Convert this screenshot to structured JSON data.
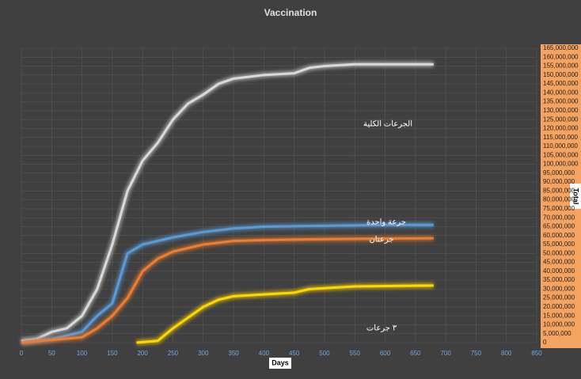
{
  "chart_data": {
    "type": "line",
    "title": "Vaccination",
    "xlabel": "Days",
    "ylabel": "Total",
    "xlim": [
      0,
      850
    ],
    "xticks": [
      0,
      50,
      100,
      150,
      200,
      250,
      300,
      350,
      400,
      450,
      500,
      550,
      600,
      650,
      700,
      750,
      800,
      850
    ],
    "ylim": [
      0,
      165000000
    ],
    "yticks": [
      0,
      {
        "value": 5000000,
        "label": "5,000,000"
      },
      {
        "value": 10000000,
        "label": "10,000,000"
      },
      {
        "value": 15000000,
        "label": "15,000,000"
      },
      {
        "value": 20000000,
        "label": "20,000,000"
      },
      {
        "value": 25000000,
        "label": "25,000,000"
      },
      {
        "value": 30000000,
        "label": "30,000,000"
      },
      {
        "value": 35000000,
        "label": "35,000,000"
      },
      {
        "value": 40000000,
        "label": "40,000,000"
      },
      {
        "value": 45000000,
        "label": "45,000,000"
      },
      {
        "value": 50000000,
        "label": "50,000,000"
      },
      {
        "value": 55000000,
        "label": "55,000,000"
      },
      {
        "value": 60000000,
        "label": "60,000,000"
      },
      {
        "value": 65000000,
        "label": "65,000,000"
      },
      {
        "value": 70000000,
        "label": "70,000,000"
      },
      {
        "value": 75000000,
        "label": "75,000,000"
      },
      {
        "value": 80000000,
        "label": "80,000,000"
      },
      {
        "value": 85000000,
        "label": "85,000,000"
      },
      {
        "value": 90000000,
        "label": "90,000,000"
      },
      {
        "value": 95000000,
        "label": "95,000,000"
      },
      {
        "value": 100000000,
        "label": "100,000,000"
      },
      {
        "value": 105000000,
        "label": "105,000,000"
      },
      {
        "value": 110000000,
        "label": "110,000,000"
      },
      {
        "value": 115000000,
        "label": "115,000,000"
      },
      {
        "value": 120000000,
        "label": "120,000,000"
      },
      {
        "value": 125000000,
        "label": "125,000,000"
      },
      {
        "value": 130000000,
        "label": "130,000,000"
      },
      {
        "value": 135000000,
        "label": "135,000,000"
      },
      {
        "value": 140000000,
        "label": "140,000,000"
      },
      {
        "value": 145000000,
        "label": "145,000,000"
      },
      {
        "value": 150000000,
        "label": "150,000,000"
      },
      {
        "value": 155000000,
        "label": "155,000,000"
      },
      {
        "value": 160000000,
        "label": "160,000,000"
      },
      {
        "value": 165000000,
        "label": "165,000,000"
      }
    ],
    "grid": true,
    "series": [
      {
        "name": "الجرعات الكلية",
        "color": "#d9d9d9",
        "x": [
          0,
          25,
          50,
          75,
          100,
          125,
          150,
          175,
          200,
          225,
          250,
          275,
          300,
          325,
          350,
          400,
          450,
          475,
          500,
          550,
          600,
          650,
          680
        ],
        "values": [
          1000000,
          2000000,
          6000000,
          8000000,
          15000000,
          30000000,
          55000000,
          85000000,
          102000000,
          112000000,
          125000000,
          134000000,
          139000000,
          145000000,
          148000000,
          150000000,
          151000000,
          154000000,
          155000000,
          156000000,
          156000000,
          156000000,
          156000000
        ]
      },
      {
        "name": "جرعة واحدة",
        "color": "#5b9bd5",
        "x": [
          0,
          50,
          100,
          125,
          150,
          175,
          200,
          250,
          300,
          350,
          400,
          500,
          600,
          680
        ],
        "values": [
          0,
          2000000,
          6000000,
          15000000,
          22000000,
          50000000,
          55000000,
          59000000,
          62000000,
          64000000,
          65000000,
          65500000,
          66000000,
          66000000
        ]
      },
      {
        "name": "جرعتان",
        "color": "#ed7d31",
        "x": [
          0,
          100,
          125,
          150,
          175,
          200,
          225,
          250,
          300,
          350,
          400,
          500,
          680
        ],
        "values": [
          0,
          3000000,
          8000000,
          15000000,
          25000000,
          40000000,
          47000000,
          51000000,
          55000000,
          57000000,
          57500000,
          58000000,
          58500000
        ]
      },
      {
        "name": "٣ جرعات",
        "color": "#ffd700",
        "x": [
          190,
          225,
          250,
          275,
          300,
          325,
          350,
          400,
          450,
          475,
          500,
          550,
          680
        ],
        "values": [
          0,
          1000000,
          8000000,
          14000000,
          20000000,
          24000000,
          26000000,
          27000000,
          28000000,
          30000000,
          30500000,
          31500000,
          32000000
        ]
      }
    ]
  }
}
